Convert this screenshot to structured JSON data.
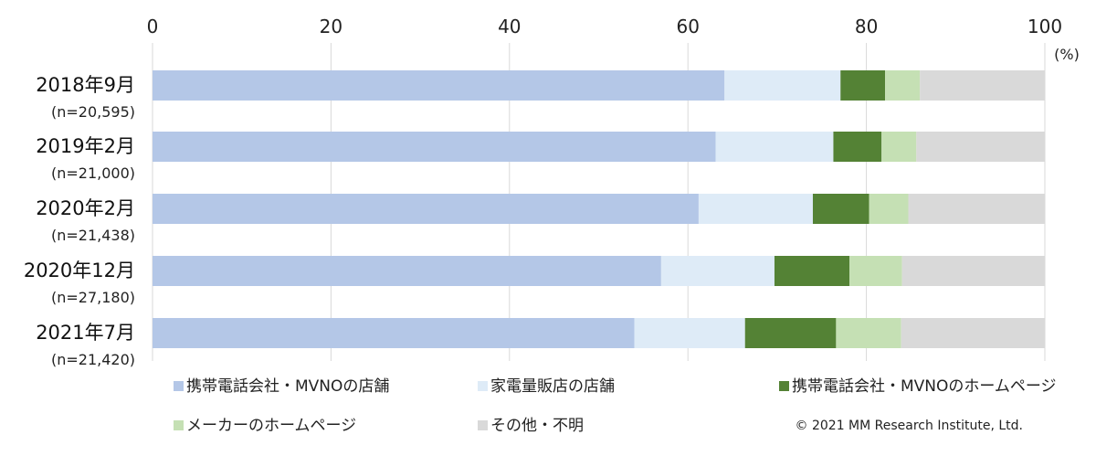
{
  "chart_data": {
    "type": "bar",
    "orientation": "horizontal",
    "stacked": true,
    "xlim": [
      0,
      100
    ],
    "x_ticks": [
      "0",
      "20",
      "40",
      "60",
      "80",
      "100"
    ],
    "x_unit": "(%)",
    "grid": true,
    "legend_position": "bottom",
    "categories": [
      "2018年9月",
      "2019年2月",
      "2020年2月",
      "2020年12月",
      "2021年7月"
    ],
    "sample_sizes": [
      "(n=20,595)",
      "(n=21,000)",
      "(n=21,438)",
      "(n=27,180)",
      "(n=21,420)"
    ],
    "series": [
      {
        "name": "携帯電話会社・MVNOの店舗",
        "color": "#b4c7e7",
        "values": [
          64.1,
          63.1,
          61.2,
          57.0,
          54.0
        ]
      },
      {
        "name": "家電量販店の店舗",
        "color": "#deebf7",
        "values": [
          13.0,
          13.2,
          12.8,
          12.7,
          12.4
        ]
      },
      {
        "name": "携帯電話会社・MVNOのホームページ",
        "color": "#548235",
        "values": [
          5.0,
          5.4,
          6.3,
          8.4,
          10.2
        ]
      },
      {
        "name": "メーカーのホームページ",
        "color": "#c5e0b4",
        "values": [
          3.9,
          3.9,
          4.4,
          5.9,
          7.3
        ]
      },
      {
        "name": "その他・不明",
        "color": "#d9d9d9",
        "values": [
          14.0,
          14.4,
          15.3,
          16.0,
          16.1
        ]
      }
    ]
  },
  "copyright": "© 2021 MM Research Institute, Ltd."
}
